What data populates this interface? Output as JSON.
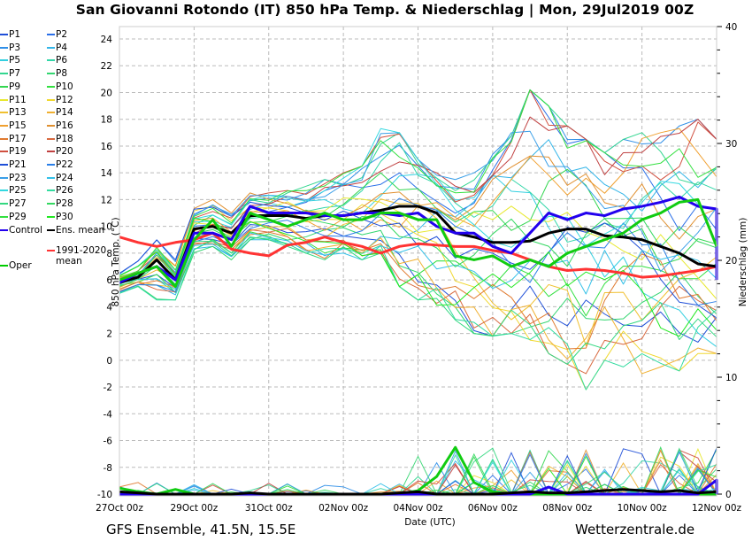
{
  "title": "San Giovanni Rotondo  (IT)  850 hPa Temp. & Niederschlag | Mon, 29Jul2019 00Z",
  "footer": {
    "left": "GFS Ensemble, 41.5N, 15.5E",
    "right": "Wetterzentrale.de"
  },
  "legend": [
    {
      "label": "P1",
      "color": "#1f4fd8"
    },
    {
      "label": "P2",
      "color": "#2a6fe8"
    },
    {
      "label": "P3",
      "color": "#2f8fe8"
    },
    {
      "label": "P4",
      "color": "#33b5e8"
    },
    {
      "label": "P5",
      "color": "#33cfe0"
    },
    {
      "label": "P6",
      "color": "#33d6a8"
    },
    {
      "label": "P7",
      "color": "#33d690"
    },
    {
      "label": "P8",
      "color": "#33d670"
    },
    {
      "label": "P9",
      "color": "#33d650"
    },
    {
      "label": "P10",
      "color": "#33e040"
    },
    {
      "label": "P11",
      "color": "#e8e830"
    },
    {
      "label": "P12",
      "color": "#f0d830"
    },
    {
      "label": "P13",
      "color": "#f0c030"
    },
    {
      "label": "P14",
      "color": "#f0b030"
    },
    {
      "label": "P15",
      "color": "#f0a030"
    },
    {
      "label": "P16",
      "color": "#e09030"
    },
    {
      "label": "P17",
      "color": "#e07a30"
    },
    {
      "label": "P18",
      "color": "#d86a40"
    },
    {
      "label": "P19",
      "color": "#d05040"
    },
    {
      "label": "P20",
      "color": "#c04040"
    },
    {
      "label": "P21",
      "color": "#1f4fd8"
    },
    {
      "label": "P22",
      "color": "#2a7fe8"
    },
    {
      "label": "P23",
      "color": "#3a9fe8"
    },
    {
      "label": "P24",
      "color": "#33c0e8"
    },
    {
      "label": "P25",
      "color": "#33d8e0"
    },
    {
      "label": "P26",
      "color": "#33dca0"
    },
    {
      "label": "P27",
      "color": "#33d880"
    },
    {
      "label": "P28",
      "color": "#33d860"
    },
    {
      "label": "P29",
      "color": "#33e040"
    },
    {
      "label": "P30",
      "color": "#22e822"
    },
    {
      "label": "Control",
      "color": "#2200ee"
    },
    {
      "label": "Ens. mean",
      "color": "#000000"
    },
    {
      "label": "Oper",
      "color": "#00cc00"
    },
    {
      "label": "1991-2020 mean",
      "color": "#ff3333"
    }
  ],
  "chart_data": {
    "type": "line",
    "title": "San Giovanni Rotondo  (IT)  850 hPa Temp. & Niederschlag | Mon, 29Jul2019 00Z",
    "xlabel": "Date (UTC)",
    "ylabel": "850 hPa Temp. (°C)",
    "y2label": "Niederschlag (mm)",
    "x_ticks": [
      "27Oct 00z",
      "29Oct 00z",
      "31Oct 00z",
      "02Nov 00z",
      "04Nov 00z",
      "06Nov 00z",
      "08Nov 00z",
      "10Nov 00z",
      "12Nov 00z"
    ],
    "x_range_days": [
      0,
      16
    ],
    "x_step_hours": 12,
    "ylim": [
      -10,
      25
    ],
    "y_ticks": [
      -10,
      -8,
      -6,
      -4,
      -2,
      0,
      2,
      4,
      6,
      8,
      10,
      12,
      14,
      16,
      18,
      20,
      22,
      24
    ],
    "y2lim": [
      0,
      40
    ],
    "y2_ticks": [
      0,
      10,
      20,
      30,
      40
    ],
    "grid": true,
    "legend_position": "left-outside",
    "temperature_series": [
      {
        "name": "Control",
        "values": [
          5.8,
          6.5,
          7.0,
          6.0,
          9.5,
          9.5,
          9.0,
          11.5,
          11.0,
          11.0,
          11.0,
          10.8,
          10.8,
          11.0,
          11.0,
          10.8,
          11.0,
          10.0,
          9.5,
          9.5,
          8.5,
          8.0,
          9.5,
          11.0,
          10.5,
          11.0,
          10.8,
          11.3,
          11.5,
          11.8,
          12.2,
          11.5,
          11.3,
          6.0
        ]
      },
      {
        "name": "Ens. mean",
        "values": [
          5.8,
          6.2,
          7.5,
          6.0,
          9.8,
          10.0,
          9.5,
          10.8,
          10.8,
          10.8,
          10.6,
          10.8,
          10.8,
          11.0,
          11.2,
          11.5,
          11.5,
          11.0,
          9.5,
          9.2,
          8.8,
          8.8,
          8.9,
          9.5,
          9.8,
          9.8,
          9.3,
          9.2,
          9.0,
          8.5,
          8.0,
          7.2,
          7.0
        ]
      },
      {
        "name": "1991-2020 mean",
        "values": [
          9.2,
          8.8,
          8.5,
          8.8,
          9.0,
          9.5,
          8.3,
          8.0,
          7.8,
          8.6,
          8.8,
          9.2,
          8.8,
          8.5,
          8.0,
          8.5,
          8.7,
          8.6,
          8.5,
          8.5,
          8.2,
          8.0,
          7.5,
          7.0,
          6.7,
          6.8,
          6.7,
          6.5,
          6.2,
          6.3,
          6.5,
          6.7,
          7.0
        ]
      },
      {
        "name": "Oper",
        "values": [
          6.0,
          6.5,
          7.0,
          5.5,
          9.0,
          10.5,
          8.5,
          11.0,
          10.5,
          10.0,
          10.5,
          11.0,
          10.5,
          10.5,
          11.0,
          11.0,
          10.5,
          10.5,
          7.8,
          7.5,
          7.8,
          7.0,
          7.5,
          7.0,
          8.0,
          8.5,
          9.0,
          9.5,
          10.5,
          11.0,
          11.8,
          12.0,
          8.5,
          8.5
        ]
      }
    ],
    "member_envelope": {
      "min": [
        5.0,
        5.5,
        4.5,
        4.5,
        8.0,
        8.5,
        7.5,
        9.0,
        9.0,
        8.5,
        8.0,
        7.5,
        8.0,
        7.5,
        8.0,
        5.5,
        4.5,
        4.0,
        3.0,
        2.0,
        1.8,
        2.0,
        1.5,
        0.5,
        -0.3,
        -2.2,
        0.0,
        -0.5,
        -1.0,
        -0.5,
        -0.8,
        0.5,
        0.5
      ],
      "max": [
        6.5,
        7.5,
        9.0,
        7.5,
        11.5,
        12.0,
        11.0,
        12.5,
        12.5,
        12.8,
        13.0,
        13.5,
        14.0,
        14.5,
        17.3,
        17.0,
        15.0,
        14.0,
        13.5,
        14.0,
        15.5,
        17.0,
        20.2,
        19.0,
        17.5,
        16.5,
        15.5,
        16.5,
        17.0,
        17.0,
        17.5,
        18.0,
        16.5
      ]
    },
    "precipitation_series": [
      {
        "name": "Oper",
        "values": [
          0.5,
          0.2,
          0,
          0.4,
          0,
          0,
          0,
          0,
          0,
          0,
          0,
          0,
          0,
          0,
          0,
          0,
          0.3,
          1.5,
          4.0,
          1.0,
          0.2,
          0,
          0,
          0,
          0,
          0,
          0,
          0,
          0,
          0,
          0,
          0,
          0,
          0
        ]
      },
      {
        "name": "Control",
        "values": [
          0,
          0,
          0,
          0,
          0,
          0,
          0,
          0,
          0,
          0,
          0,
          0,
          0,
          0,
          0,
          0,
          0,
          0,
          0,
          0,
          0,
          0,
          0,
          0.6,
          0,
          0,
          0,
          0,
          0,
          0,
          0,
          0,
          1.2,
          0
        ]
      },
      {
        "name": "Ens. mean",
        "values": [
          0.2,
          0.1,
          0,
          0,
          0,
          0,
          0,
          0.1,
          0,
          0,
          0,
          0,
          0,
          0,
          0,
          0.1,
          0.2,
          0,
          0,
          0,
          0,
          0.1,
          0.2,
          0.1,
          0.1,
          0.2,
          0.3,
          0.4,
          0.3,
          0.2,
          0.3,
          0.1,
          0.2
        ]
      }
    ]
  }
}
